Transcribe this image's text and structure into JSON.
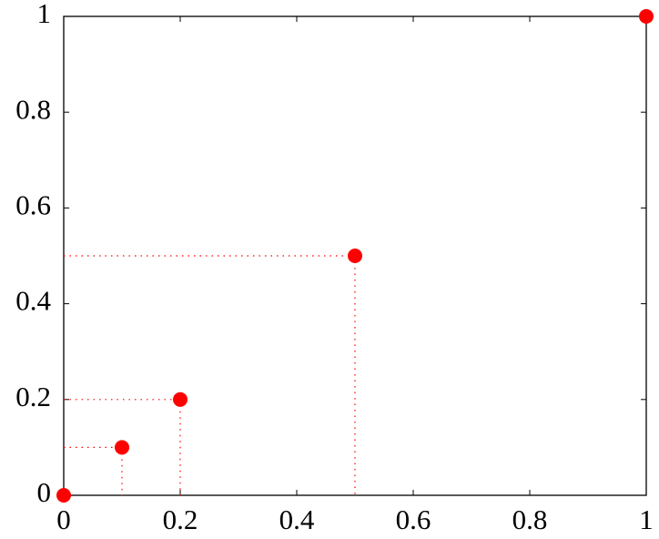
{
  "chart_data": {
    "type": "line",
    "x": [
      0,
      0.1,
      0.2,
      0.5,
      1
    ],
    "series": [
      {
        "color": "#ff0000",
        "values": [
          0,
          0.1,
          0.2,
          0.5,
          1
        ]
      }
    ],
    "xlim": [
      0,
      1
    ],
    "ylim": [
      0,
      1
    ],
    "xticks": [
      0,
      0.2,
      0.4,
      0.6,
      0.8,
      1
    ],
    "yticks": [
      0,
      0.2,
      0.4,
      0.6,
      0.8,
      1
    ],
    "markers": true,
    "drop_lines": true
  }
}
